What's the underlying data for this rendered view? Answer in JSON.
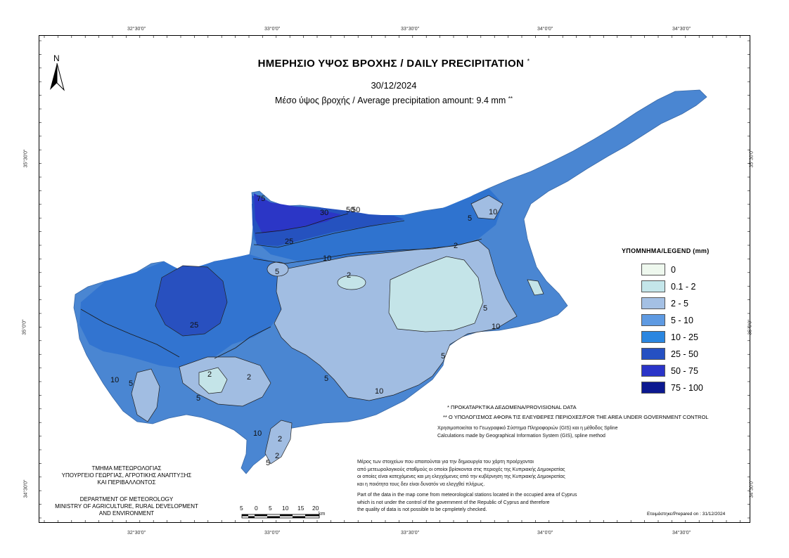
{
  "title": "ΗΜΕΡΗΣΙΟ ΥΨΟΣ ΒΡΟΧΗΣ / DAILY PRECIPITATION",
  "title_mark": "*",
  "date": "30/12/2024",
  "average_text": "Μέσο ύψος βροχής / Average precipitation amount: 9.4 mm",
  "average_mark": "**",
  "north_label": "N",
  "grid_labels": {
    "top": [
      "32°30'0\"",
      "33°0'0\"",
      "33°30'0\"",
      "34°0'0\"",
      "34°30'0\""
    ],
    "bottom": [
      "32°30'0\"",
      "33°0'0\"",
      "33°30'0\"",
      "34°0'0\"",
      "34°30'0\""
    ],
    "left": [
      "35°30'0\"",
      "35°0'0\"",
      "34°30'0\""
    ],
    "right": [
      "35°30'0\"",
      "35°0'0\"",
      "34°30'0\""
    ]
  },
  "contour_labels": [
    "75",
    "50",
    "50",
    "30",
    "25",
    "10",
    "5",
    "2",
    "2",
    "5",
    "10",
    "5",
    "10",
    "25",
    "10",
    "5",
    "2",
    "2",
    "5",
    "5",
    "10",
    "10",
    "2",
    "5",
    "2",
    "5"
  ],
  "legend": {
    "title": "ΥΠΟΜΝΗΜΑ/LEGEND (mm)",
    "items": [
      {
        "label": "0",
        "color": "#eef8ee"
      },
      {
        "label": "0.1 - 2",
        "color": "#c4e6ea"
      },
      {
        "label": "2 - 5",
        "color": "#a4c0e4"
      },
      {
        "label": "5 - 10",
        "color": "#5e9ae2"
      },
      {
        "label": "10 - 25",
        "color": "#2a86e0"
      },
      {
        "label": "25 - 50",
        "color": "#2550c2"
      },
      {
        "label": "50 - 75",
        "color": "#2a34c8"
      },
      {
        "label": "75 - 100",
        "color": "#0c1890"
      }
    ]
  },
  "notes": {
    "provisional": "* ΠΡΟΚΑΤΑΡΚΤΙΚΑ ΔΕΔΟΜΕΝΑ/PROVISIONAL DATA",
    "government": "** Ο ΥΠΟΛΟΓΙΣΜΟΣ ΑΦΟΡΑ ΤΙΣ ΕΛΕΥΘΕΡΕΣ ΠΕΡΙΟΧΕΣ/FOR THE AREA UNDER GOVERNMENT CONTROL",
    "gis_gr": "Χρησιμοποιείται το Γεωγραφικό Σύστημα Πληροφοριών (GIS) και η μέθοδος Spline",
    "gis_en": "Calculations made by Geographical Information System (GIS), spline method"
  },
  "disclaimer_gr": [
    "Μέρος των στοιχείων που απαιτούνται για την δημιουργία του χάρτη προέρχονται",
    "από μετεωρολογικούς σταθμούς οι οποίοι βρίσκονται στις περιοχές της Κυπριακής Δημοκρατίας",
    "οι οποίες είναι κατεχόμενες και μη ελεγχόμενες από την κυβέρνηση της Κυπριακής Δημοκρατίας",
    "και η ποιότητα τους δεν είναι δυνατόν να ελεγχθεί πλήρως."
  ],
  "disclaimer_en": [
    "Part of the data in the map come from meteorological stations located in the occupied area of Cyprus",
    "which is not under the control of the government of the Republic of Cyprus and therefore",
    "the quality of data is not possible to be cpmpletely checked."
  ],
  "department_gr": [
    "ΤΜΗΜΑ ΜΕΤΕΩΡΟΛΟΓΙΑΣ",
    "ΥΠΟΥΡΓΕΙΟ ΓΕΩΡΓΙΑΣ, ΑΓΡΟΤΙΚΗΣ ΑΝΑΠΤΥΞΗΣ",
    "ΚΑΙ ΠΕΡΙΒΑΛΛΟΝΤΟΣ"
  ],
  "department_en": [
    "DEPARTMENT OF METEOROLOGY",
    "MINISTRY OF AGRICULTURE, RURAL DEVELOPMENT",
    "AND ENVIRONMENT"
  ],
  "scale": {
    "labels": [
      "5",
      "0",
      "5",
      "10",
      "15",
      "20"
    ],
    "unit": "km"
  },
  "prepared": "Ετοιμάστηκε/Prepared on : 31/12/2024"
}
